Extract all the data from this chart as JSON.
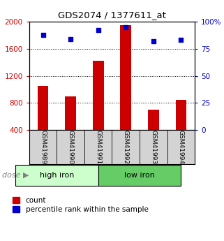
{
  "title": "GDS2074 / 1377611_at",
  "categories": [
    "GSM41989",
    "GSM41990",
    "GSM41991",
    "GSM41992",
    "GSM41993",
    "GSM41994"
  ],
  "bar_values": [
    1050,
    900,
    1420,
    1950,
    700,
    850
  ],
  "scatter_values": [
    88,
    84,
    92,
    95,
    82,
    83
  ],
  "bar_color": "#cc0000",
  "scatter_color": "#0000cc",
  "ylim_left": [
    400,
    2000
  ],
  "ylim_right": [
    0,
    100
  ],
  "yticks_left": [
    400,
    800,
    1200,
    1600,
    2000
  ],
  "yticks_right": [
    0,
    25,
    50,
    75,
    100
  ],
  "groups": [
    {
      "label": "high iron",
      "indices": [
        0,
        1,
        2
      ],
      "color": "#ccffcc"
    },
    {
      "label": "low iron",
      "indices": [
        3,
        4,
        5
      ],
      "color": "#66cc66"
    }
  ],
  "dose_label": "dose",
  "legend_count_label": "count",
  "legend_pct_label": "percentile rank within the sample",
  "grid_color": "black",
  "background_color": "white",
  "plot_bg_color": "white",
  "tick_label_bg": "#d3d3d3"
}
